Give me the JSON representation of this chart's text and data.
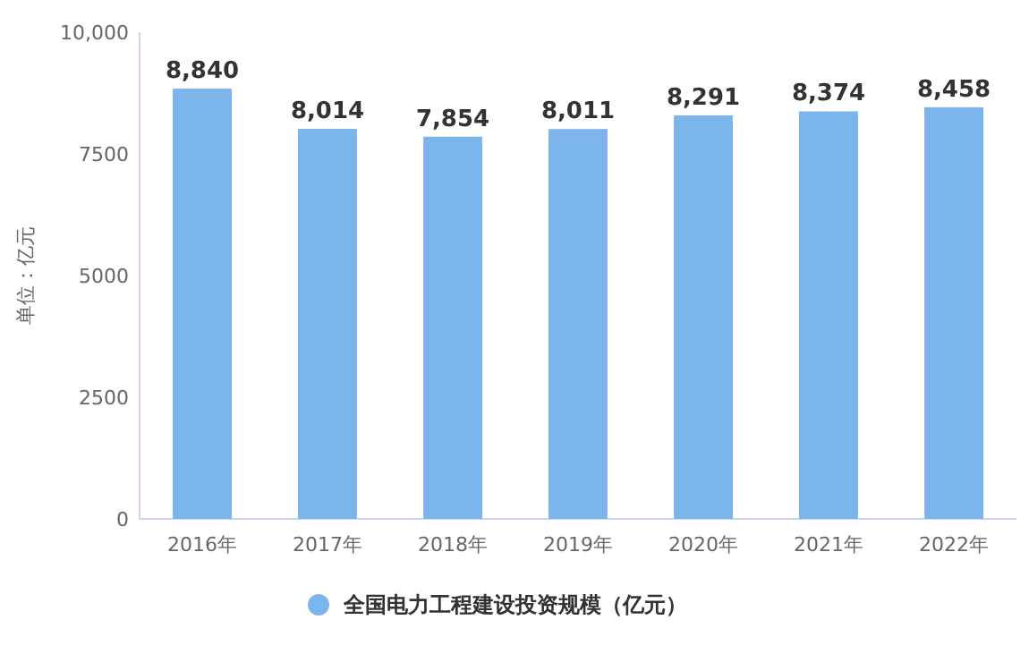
{
  "chart_data": {
    "type": "bar",
    "ylabel": "单位：亿元",
    "categories": [
      "2016年",
      "2017年",
      "2018年",
      "2019年",
      "2020年",
      "2021年",
      "2022年"
    ],
    "series": [
      {
        "name": "全国电力工程建设投资规模（亿元）",
        "color": "#7cb5ec",
        "values": [
          8840,
          8014,
          7854,
          8011,
          8291,
          8374,
          8458
        ],
        "value_labels": [
          "8,840",
          "8,014",
          "7,854",
          "8,011",
          "8,291",
          "8,374",
          "8,458"
        ]
      }
    ],
    "ylim": [
      0,
      10000
    ],
    "yticks": [
      0,
      2500,
      5000,
      7500,
      {
        "value": 10000,
        "label": "10,000"
      }
    ],
    "grid": false,
    "legend": "bottom",
    "marker": "circle"
  }
}
